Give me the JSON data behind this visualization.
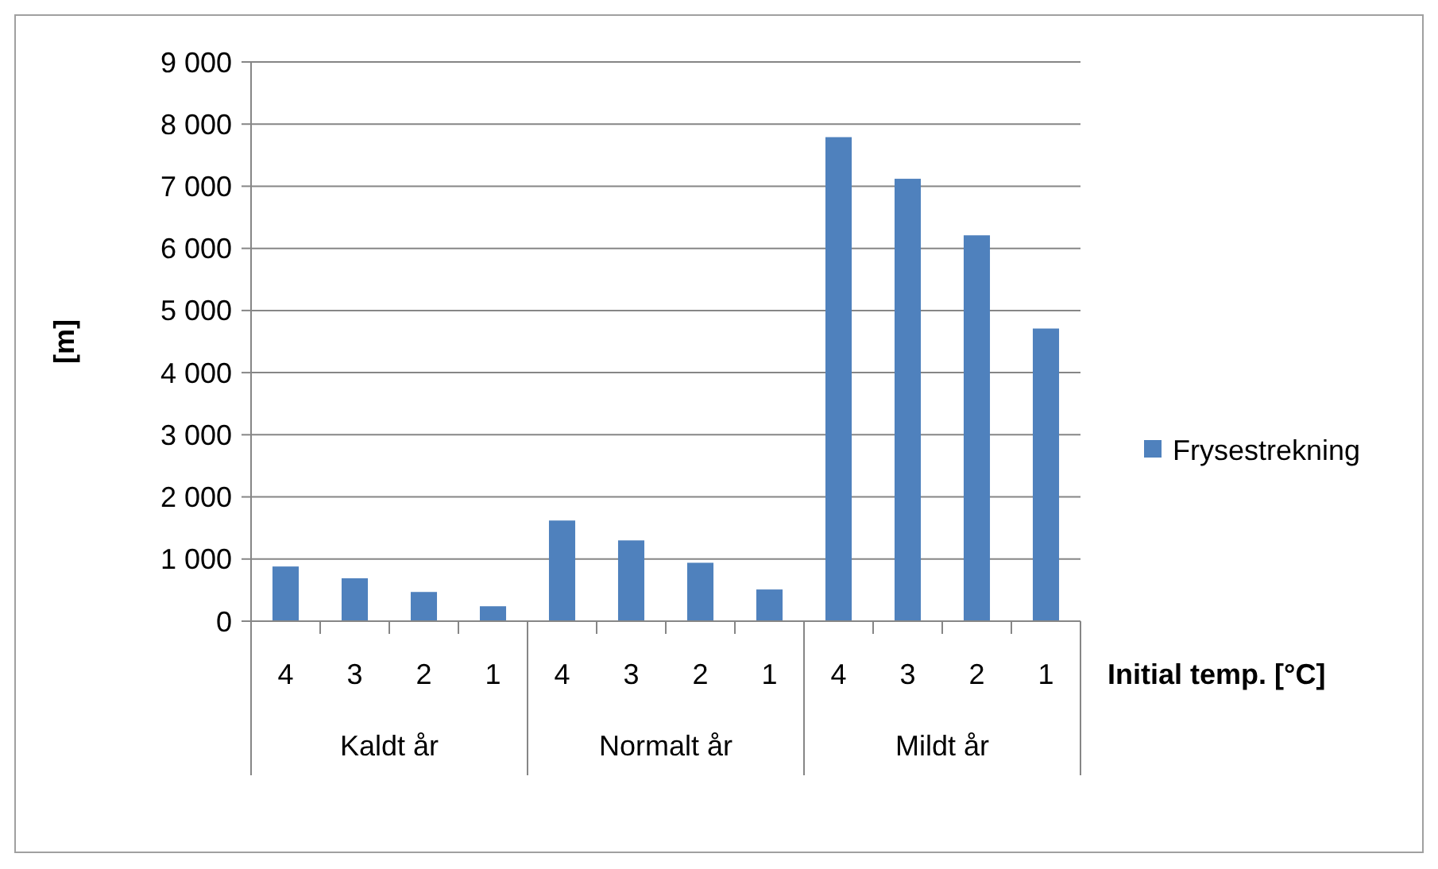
{
  "chart_data": {
    "type": "bar",
    "xlabel": "Initial temp. [°C]",
    "ylabel": "[m]",
    "categories": [
      "4",
      "3",
      "2",
      "1",
      "4",
      "3",
      "2",
      "1",
      "4",
      "3",
      "2",
      "1"
    ],
    "annotations": [
      "Kaldt år",
      "Normalt år",
      "Mildt år"
    ],
    "series": [
      {
        "name": "Frysestrekning",
        "color": "#4f81bd",
        "values": [
          880,
          690,
          470,
          240,
          1620,
          1300,
          940,
          510,
          7790,
          7120,
          6210,
          4710
        ]
      }
    ],
    "ylim": [
      0,
      9000
    ],
    "yticks": [
      {
        "value": 0,
        "label": "0"
      },
      {
        "value": 1000,
        "label": "1 000"
      },
      {
        "value": 2000,
        "label": "2 000"
      },
      {
        "value": 3000,
        "label": "3 000"
      },
      {
        "value": 4000,
        "label": "4 000"
      },
      {
        "value": 5000,
        "label": "5 000"
      },
      {
        "value": 6000,
        "label": "6 000"
      },
      {
        "value": 7000,
        "label": "7 000"
      },
      {
        "value": 8000,
        "label": "8 000"
      },
      {
        "value": 9000,
        "label": "9 000"
      }
    ],
    "grid": "y",
    "legend": "right"
  }
}
